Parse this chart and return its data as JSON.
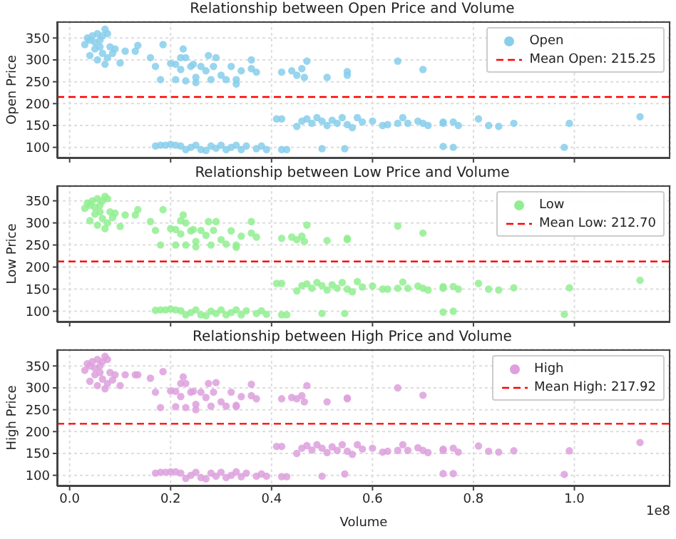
{
  "chart_data": [
    {
      "type": "scatter",
      "title": "Relationship between Open Price and Volume",
      "ylabel": "Open Price",
      "xlim": [
        -0.025,
        1.19
      ],
      "xticks": [
        {
          "value": 0,
          "label": null
        },
        {
          "value": 0.2,
          "label": null
        },
        {
          "value": 0.4,
          "label": null
        },
        {
          "value": 0.6,
          "label": null
        },
        {
          "value": 0.8,
          "label": null
        },
        {
          "value": 1,
          "label": null
        }
      ],
      "ylim": [
        75,
        388
      ],
      "yticks": [
        100,
        150,
        200,
        250,
        300,
        350
      ],
      "tick_labels": "y",
      "grid": true,
      "legend": "top right",
      "marker": "circle",
      "series": [
        {
          "name": "Open",
          "color": "#87ceeb",
          "x": [
            0.03,
            0.035,
            0.04,
            0.04,
            0.045,
            0.05,
            0.05,
            0.055,
            0.055,
            0.06,
            0.06,
            0.065,
            0.065,
            0.07,
            0.07,
            0.075,
            0.075,
            0.08,
            0.085,
            0.09,
            0.1,
            0.11,
            0.13,
            0.135,
            0.16,
            0.17,
            0.18,
            0.185,
            0.2,
            0.21,
            0.21,
            0.22,
            0.22,
            0.225,
            0.23,
            0.23,
            0.24,
            0.245,
            0.25,
            0.25,
            0.26,
            0.27,
            0.275,
            0.28,
            0.285,
            0.29,
            0.3,
            0.31,
            0.32,
            0.33,
            0.33,
            0.34,
            0.36,
            0.36,
            0.37,
            0.42,
            0.44,
            0.45,
            0.46,
            0.465,
            0.47,
            0.51,
            0.55,
            0.55,
            0.65,
            0.7,
            0.41,
            0.42,
            0.45,
            0.46,
            0.47,
            0.48,
            0.49,
            0.5,
            0.51,
            0.52,
            0.53,
            0.54,
            0.55,
            0.56,
            0.57,
            0.58,
            0.6,
            0.62,
            0.63,
            0.65,
            0.66,
            0.67,
            0.69,
            0.7,
            0.71,
            0.74,
            0.74,
            0.76,
            0.77,
            0.81,
            0.83,
            0.85,
            0.88,
            0.99,
            1.13,
            0.17,
            0.18,
            0.19,
            0.2,
            0.21,
            0.22,
            0.23,
            0.24,
            0.25,
            0.26,
            0.27,
            0.28,
            0.29,
            0.3,
            0.31,
            0.32,
            0.33,
            0.34,
            0.35,
            0.37,
            0.38,
            0.39,
            0.42,
            0.43,
            0.5,
            0.545,
            0.74,
            0.76,
            0.98
          ],
          "values": [
            335,
            350,
            345,
            310,
            355,
            340,
            325,
            360,
            300,
            330,
            345,
            315,
            355,
            370,
            290,
            360,
            305,
            330,
            315,
            325,
            293,
            320,
            320,
            333,
            305,
            285,
            255,
            335,
            292,
            290,
            255,
            305,
            278,
            325,
            305,
            252,
            285,
            290,
            260,
            248,
            285,
            275,
            310,
            255,
            285,
            305,
            265,
            255,
            285,
            245,
            255,
            275,
            300,
            280,
            272,
            272,
            275,
            265,
            280,
            260,
            297,
            260,
            273,
            265,
            297,
            278,
            165,
            165,
            148,
            160,
            165,
            155,
            168,
            160,
            150,
            162,
            155,
            168,
            152,
            145,
            168,
            158,
            160,
            150,
            152,
            155,
            168,
            155,
            160,
            155,
            150,
            155,
            158,
            158,
            150,
            165,
            150,
            148,
            155,
            155,
            170,
            103,
            105,
            105,
            107,
            105,
            103,
            95,
            100,
            105,
            95,
            93,
            103,
            98,
            105,
            95,
            100,
            105,
            95,
            103,
            97,
            103,
            95,
            95,
            95,
            97,
            97,
            102,
            100,
            100
          ]
        }
      ],
      "ref_lines": [
        {
          "axis": "y",
          "value": 215.25,
          "label": "Mean Open: 215.25",
          "color": "#ff0000",
          "line_style": "dashed"
        }
      ]
    },
    {
      "type": "scatter",
      "title": "Relationship between Low Price and Volume",
      "ylabel": "Low Price",
      "xlim": [
        -0.025,
        1.19
      ],
      "xticks": [
        {
          "value": 0,
          "label": null
        },
        {
          "value": 0.2,
          "label": null
        },
        {
          "value": 0.4,
          "label": null
        },
        {
          "value": 0.6,
          "label": null
        },
        {
          "value": 0.8,
          "label": null
        },
        {
          "value": 1,
          "label": null
        }
      ],
      "ylim": [
        75,
        385
      ],
      "yticks": [
        100,
        150,
        200,
        250,
        300,
        350
      ],
      "tick_labels": "y",
      "grid": true,
      "legend": "top right",
      "marker": "circle",
      "series": [
        {
          "name": "Low",
          "color": "#90ee90",
          "x": [
            0.03,
            0.035,
            0.04,
            0.04,
            0.045,
            0.05,
            0.05,
            0.055,
            0.055,
            0.06,
            0.06,
            0.065,
            0.065,
            0.07,
            0.07,
            0.075,
            0.075,
            0.08,
            0.085,
            0.09,
            0.1,
            0.11,
            0.13,
            0.135,
            0.16,
            0.17,
            0.18,
            0.185,
            0.2,
            0.21,
            0.21,
            0.22,
            0.22,
            0.225,
            0.23,
            0.23,
            0.24,
            0.245,
            0.25,
            0.25,
            0.26,
            0.27,
            0.275,
            0.28,
            0.285,
            0.29,
            0.3,
            0.31,
            0.32,
            0.33,
            0.33,
            0.34,
            0.36,
            0.36,
            0.37,
            0.42,
            0.44,
            0.45,
            0.46,
            0.465,
            0.47,
            0.51,
            0.55,
            0.55,
            0.65,
            0.7,
            0.41,
            0.42,
            0.45,
            0.46,
            0.47,
            0.48,
            0.49,
            0.5,
            0.51,
            0.52,
            0.53,
            0.54,
            0.55,
            0.56,
            0.57,
            0.58,
            0.6,
            0.62,
            0.63,
            0.65,
            0.66,
            0.67,
            0.69,
            0.7,
            0.71,
            0.74,
            0.74,
            0.76,
            0.77,
            0.81,
            0.83,
            0.85,
            0.88,
            0.99,
            1.13,
            0.17,
            0.18,
            0.19,
            0.2,
            0.21,
            0.22,
            0.23,
            0.24,
            0.25,
            0.26,
            0.27,
            0.28,
            0.29,
            0.3,
            0.31,
            0.32,
            0.33,
            0.34,
            0.35,
            0.37,
            0.38,
            0.39,
            0.42,
            0.43,
            0.5,
            0.545,
            0.74,
            0.76,
            0.98
          ],
          "values": [
            333,
            345,
            340,
            305,
            350,
            335,
            320,
            355,
            295,
            325,
            340,
            310,
            350,
            360,
            287,
            355,
            300,
            325,
            312,
            322,
            292,
            318,
            318,
            330,
            303,
            283,
            250,
            330,
            287,
            285,
            250,
            305,
            275,
            318,
            300,
            250,
            282,
            285,
            258,
            246,
            283,
            272,
            303,
            250,
            283,
            303,
            262,
            252,
            282,
            245,
            250,
            270,
            303,
            277,
            268,
            265,
            268,
            262,
            270,
            258,
            295,
            260,
            265,
            262,
            293,
            277,
            163,
            163,
            146,
            158,
            162,
            152,
            165,
            158,
            148,
            160,
            152,
            165,
            150,
            144,
            167,
            155,
            157,
            150,
            150,
            152,
            166,
            152,
            157,
            152,
            148,
            152,
            156,
            156,
            150,
            163,
            150,
            148,
            153,
            153,
            170,
            102,
            103,
            103,
            105,
            103,
            101,
            92,
            97,
            103,
            92,
            90,
            100,
            95,
            103,
            92,
            97,
            103,
            92,
            101,
            95,
            101,
            93,
            92,
            92,
            95,
            95,
            98,
            100,
            93
          ]
        }
      ],
      "ref_lines": [
        {
          "axis": "y",
          "value": 212.7,
          "label": "Mean Low: 212.70",
          "color": "#ff0000",
          "line_style": "dashed"
        }
      ]
    },
    {
      "type": "scatter",
      "title": "Relationship between High Price and Volume",
      "xlabel": "Volume",
      "ylabel": "High Price",
      "xlim": [
        -0.025,
        1.19
      ],
      "xticks": [
        {
          "value": 0,
          "label": "0.0"
        },
        0.2,
        0.4,
        0.6,
        0.8,
        {
          "value": 1,
          "label": "1.0"
        }
      ],
      "ylim": [
        75,
        388
      ],
      "yticks": [
        100,
        150,
        200,
        250,
        300,
        350
      ],
      "grid": true,
      "legend": "top right",
      "marker": "circle",
      "annotations": [
        "1e8"
      ],
      "series": [
        {
          "name": "High",
          "color": "#dda0dd",
          "x": [
            0.03,
            0.035,
            0.04,
            0.04,
            0.045,
            0.05,
            0.05,
            0.055,
            0.055,
            0.06,
            0.06,
            0.065,
            0.065,
            0.07,
            0.07,
            0.075,
            0.075,
            0.08,
            0.085,
            0.09,
            0.1,
            0.11,
            0.13,
            0.135,
            0.16,
            0.17,
            0.18,
            0.185,
            0.2,
            0.21,
            0.21,
            0.22,
            0.22,
            0.225,
            0.23,
            0.23,
            0.24,
            0.245,
            0.25,
            0.25,
            0.26,
            0.27,
            0.275,
            0.28,
            0.285,
            0.29,
            0.3,
            0.31,
            0.32,
            0.33,
            0.33,
            0.34,
            0.36,
            0.36,
            0.37,
            0.42,
            0.44,
            0.45,
            0.46,
            0.465,
            0.47,
            0.51,
            0.55,
            0.55,
            0.65,
            0.7,
            0.41,
            0.42,
            0.45,
            0.46,
            0.47,
            0.48,
            0.49,
            0.5,
            0.51,
            0.52,
            0.53,
            0.54,
            0.55,
            0.56,
            0.57,
            0.58,
            0.6,
            0.62,
            0.63,
            0.65,
            0.66,
            0.67,
            0.69,
            0.7,
            0.71,
            0.74,
            0.74,
            0.76,
            0.77,
            0.81,
            0.83,
            0.85,
            0.88,
            0.99,
            1.13,
            0.17,
            0.18,
            0.19,
            0.2,
            0.21,
            0.22,
            0.23,
            0.24,
            0.25,
            0.26,
            0.27,
            0.28,
            0.29,
            0.3,
            0.31,
            0.32,
            0.33,
            0.34,
            0.35,
            0.37,
            0.38,
            0.39,
            0.42,
            0.43,
            0.5,
            0.545,
            0.74,
            0.76,
            0.98
          ],
          "values": [
            340,
            355,
            350,
            315,
            360,
            345,
            330,
            365,
            305,
            335,
            350,
            320,
            360,
            372,
            298,
            365,
            310,
            335,
            318,
            330,
            305,
            330,
            330,
            330,
            322,
            290,
            255,
            337,
            293,
            292,
            257,
            310,
            280,
            325,
            310,
            255,
            290,
            292,
            262,
            250,
            290,
            278,
            310,
            258,
            290,
            312,
            268,
            258,
            290,
            257,
            260,
            280,
            308,
            282,
            275,
            275,
            278,
            275,
            282,
            268,
            305,
            268,
            277,
            275,
            300,
            283,
            166,
            166,
            150,
            162,
            168,
            158,
            170,
            162,
            152,
            165,
            157,
            170,
            155,
            148,
            170,
            160,
            162,
            153,
            155,
            157,
            170,
            157,
            163,
            157,
            152,
            157,
            160,
            162,
            153,
            167,
            155,
            153,
            156,
            156,
            175,
            105,
            107,
            107,
            108,
            108,
            105,
            93,
            100,
            107,
            95,
            92,
            105,
            98,
            107,
            95,
            100,
            108,
            97,
            105,
            98,
            103,
            98,
            97,
            97,
            98,
            103,
            104,
            104,
            102
          ]
        }
      ],
      "ref_lines": [
        {
          "axis": "y",
          "value": 217.92,
          "label": "Mean High: 217.92",
          "color": "#ff0000",
          "line_style": "dashed"
        }
      ]
    }
  ]
}
